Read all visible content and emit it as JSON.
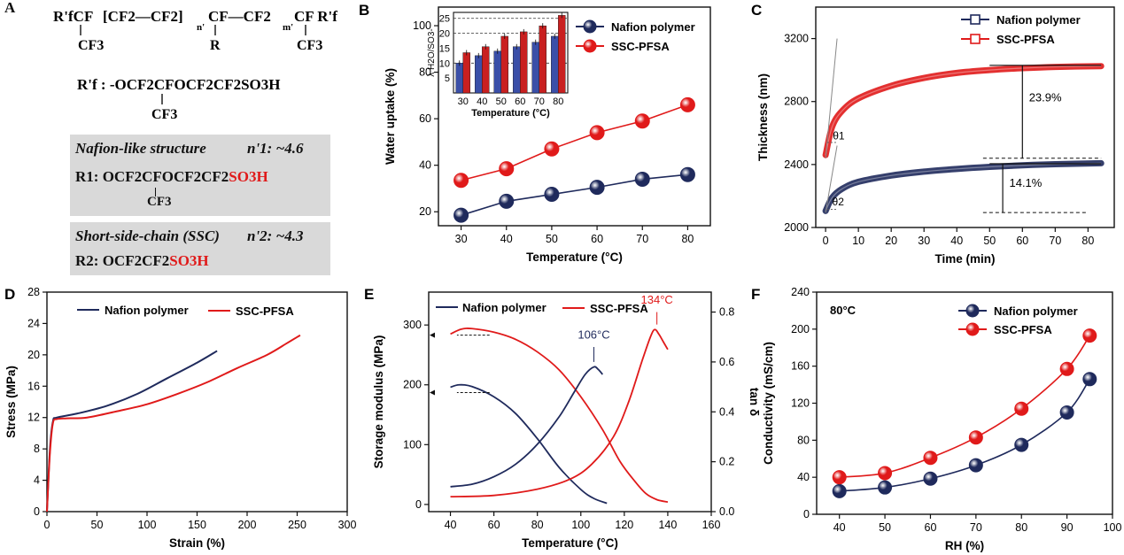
{
  "panels": {
    "A": {
      "letter": "A",
      "formula": {
        "backbone_end_left": "R'fCF",
        "backbone_cf3_left": "CF3",
        "repeat1": "[CF2—CF2]",
        "sub_n": "n'",
        "repeat2": "CF—CF2",
        "sub_m": "m'",
        "backbone_end_right": "CF R'f",
        "branch_R": "R",
        "branch_cf3_right": "CF3",
        "rf_def": "R'f : -OCF2CFOCF2CF2SO3H",
        "rf_cf3": "CF3"
      },
      "nafion_box": {
        "title": "Nafion-like structure",
        "n_value": "n'1: ~4.6",
        "r1_prefix": "R1: OCF2CFOCF2CF2",
        "r1_acid": "SO3H",
        "r1_cf3": "CF3"
      },
      "ssc_box": {
        "title": "Short-side-chain (SSC)",
        "n_value": "n'2: ~4.3",
        "r2_prefix": "R2: OCF2CF2",
        "r2_acid": "SO3H"
      }
    },
    "B": {
      "letter": "B"
    },
    "C": {
      "letter": "C"
    },
    "D": {
      "letter": "D"
    },
    "E": {
      "letter": "E"
    },
    "F": {
      "letter": "F"
    }
  },
  "colors": {
    "nafion": "#1f2a5c",
    "ssc": "#e01a1a",
    "inset_blue": "#3a4fa8",
    "inset_red": "#c92020"
  },
  "chart_data": [
    {
      "id": "B",
      "type": "line",
      "xlabel": "Temperature (°C)",
      "ylabel": "Water uptake (%)",
      "xlim": [
        25,
        85
      ],
      "ylim": [
        14,
        108
      ],
      "xticks": [
        30,
        40,
        50,
        60,
        70,
        80
      ],
      "yticks": [
        20,
        40,
        60,
        80,
        100
      ],
      "legend_position": "top-right",
      "series": [
        {
          "name": "Nafion polymer",
          "x": [
            30,
            40,
            50,
            60,
            70,
            80
          ],
          "values": [
            18.5,
            24.5,
            27.5,
            30.5,
            34,
            36
          ]
        },
        {
          "name": "SSC-PFSA",
          "x": [
            30,
            40,
            50,
            60,
            70,
            80
          ],
          "values": [
            33.5,
            38.5,
            47,
            54,
            59,
            66
          ]
        }
      ],
      "inset": {
        "type": "bar",
        "xlabel": "Temperature (°C)",
        "ylabel": "λ H2O/SO3-",
        "categories": [
          "30",
          "40",
          "50",
          "60",
          "70",
          "80"
        ],
        "ylim": [
          0,
          27
        ],
        "yticks": [
          5,
          10,
          15,
          20,
          25
        ],
        "dashed_lines": [
          10,
          20,
          25
        ],
        "series": [
          {
            "name": "Nafion polymer",
            "values": [
              10,
              12.5,
              14,
              15.5,
              17,
              19
            ]
          },
          {
            "name": "SSC-PFSA",
            "values": [
              13.5,
              15.5,
              19,
              20.5,
              22.5,
              26
            ]
          }
        ]
      }
    },
    {
      "id": "C",
      "type": "line",
      "xlabel": "Time (min)",
      "ylabel": "Thickness (nm)",
      "xlim": [
        -3,
        88
      ],
      "ylim": [
        2000,
        3400
      ],
      "xticks": [
        0,
        10,
        20,
        30,
        40,
        50,
        60,
        70,
        80
      ],
      "yticks": [
        2000,
        2400,
        2800,
        3200
      ],
      "legend_position": "top-right",
      "series": [
        {
          "name": "Nafion polymer",
          "x": [
            0,
            2,
            5,
            10,
            20,
            30,
            40,
            50,
            60,
            70,
            84
          ],
          "values": [
            2105,
            2190,
            2245,
            2290,
            2330,
            2355,
            2372,
            2385,
            2395,
            2402,
            2408
          ]
        },
        {
          "name": "SSC-PFSA",
          "x": [
            0,
            2,
            5,
            10,
            20,
            30,
            40,
            50,
            60,
            70,
            84
          ],
          "values": [
            2460,
            2640,
            2740,
            2820,
            2900,
            2950,
            2982,
            3000,
            3012,
            3020,
            3025
          ]
        }
      ],
      "annotations": [
        "23.9%",
        "14.1%",
        "θ1",
        "θ2"
      ]
    },
    {
      "id": "D",
      "type": "line",
      "xlabel": "Strain (%)",
      "ylabel": "Stress (MPa)",
      "xlim": [
        0,
        300
      ],
      "ylim": [
        0,
        28
      ],
      "xticks": [
        0,
        50,
        100,
        150,
        200,
        250,
        300
      ],
      "yticks": [
        0,
        4,
        8,
        12,
        16,
        20,
        24,
        28
      ],
      "legend_position": "top",
      "series": [
        {
          "name": "Nafion polymer",
          "x": [
            0,
            3,
            6,
            10,
            30,
            60,
            90,
            120,
            150,
            170
          ],
          "values": [
            0,
            8,
            11.5,
            12,
            12.5,
            13.5,
            15,
            17,
            19,
            20.5
          ]
        },
        {
          "name": "SSC-PFSA",
          "x": [
            0,
            3,
            6,
            10,
            20,
            40,
            70,
            100,
            130,
            160,
            190,
            220,
            240,
            253
          ],
          "values": [
            0,
            7.5,
            11.3,
            11.8,
            11.9,
            12,
            12.8,
            13.7,
            15,
            16.5,
            18.3,
            20,
            21.5,
            22.5
          ]
        }
      ]
    },
    {
      "id": "E",
      "type": "line",
      "xlabel": "Temperature (°C)",
      "ylabel": "Storage modulus (MPa)",
      "y2label": "tan δ",
      "xlim": [
        30,
        160
      ],
      "ylim": [
        -12,
        355
      ],
      "y2lim": [
        0,
        0.88
      ],
      "xticks": [
        40,
        60,
        80,
        100,
        120,
        140,
        160
      ],
      "yticks": [
        0,
        100,
        200,
        300
      ],
      "y2ticks": [
        0.0,
        0.2,
        0.4,
        0.6,
        0.8
      ],
      "legend_position": "top",
      "series": [
        {
          "name": "Nafion polymer",
          "axis": "modulus",
          "x": [
            40,
            44,
            50,
            60,
            70,
            80,
            90,
            100,
            106,
            112
          ],
          "values": [
            196,
            200,
            197,
            180,
            152,
            110,
            62,
            25,
            10,
            2
          ]
        },
        {
          "name": "SSC-PFSA",
          "axis": "modulus",
          "x": [
            40,
            45,
            50,
            60,
            70,
            80,
            90,
            100,
            110,
            118,
            125,
            130,
            135,
            140
          ],
          "values": [
            285,
            293,
            294,
            288,
            276,
            255,
            225,
            180,
            125,
            72,
            38,
            18,
            8,
            4
          ]
        },
        {
          "name": "Nafion polymer",
          "axis": "tan_delta",
          "x": [
            40,
            50,
            60,
            70,
            80,
            90,
            97,
            102,
            106,
            108,
            110
          ],
          "values": [
            0.1,
            0.11,
            0.14,
            0.19,
            0.27,
            0.38,
            0.48,
            0.55,
            0.58,
            0.57,
            0.55
          ]
        },
        {
          "name": "SSC-PFSA",
          "axis": "tan_delta",
          "x": [
            40,
            60,
            80,
            95,
            105,
            115,
            122,
            128,
            132,
            134,
            136,
            138,
            140
          ],
          "values": [
            0.06,
            0.065,
            0.09,
            0.13,
            0.19,
            0.3,
            0.44,
            0.6,
            0.7,
            0.73,
            0.71,
            0.68,
            0.65
          ]
        }
      ],
      "annotations": [
        "106°C",
        "134°C"
      ]
    },
    {
      "id": "F",
      "type": "line",
      "xlabel": "RH (%)",
      "ylabel": "Conductivity (mS/cm)",
      "xlim": [
        35,
        100
      ],
      "ylim": [
        0,
        240
      ],
      "xticks": [
        40,
        50,
        60,
        70,
        80,
        90,
        100
      ],
      "yticks": [
        0,
        40,
        80,
        120,
        160,
        200,
        240
      ],
      "legend_position": "top-right",
      "annotation_label": "80°C",
      "series": [
        {
          "name": "Nafion polymer",
          "x": [
            40,
            50,
            60,
            70,
            80,
            90,
            95
          ],
          "values": [
            25,
            29,
            38.5,
            53,
            75,
            110,
            146
          ]
        },
        {
          "name": "SSC-PFSA",
          "x": [
            40,
            50,
            60,
            70,
            80,
            90,
            95
          ],
          "values": [
            40,
            44.5,
            61,
            83,
            114,
            157,
            193
          ]
        }
      ]
    }
  ]
}
